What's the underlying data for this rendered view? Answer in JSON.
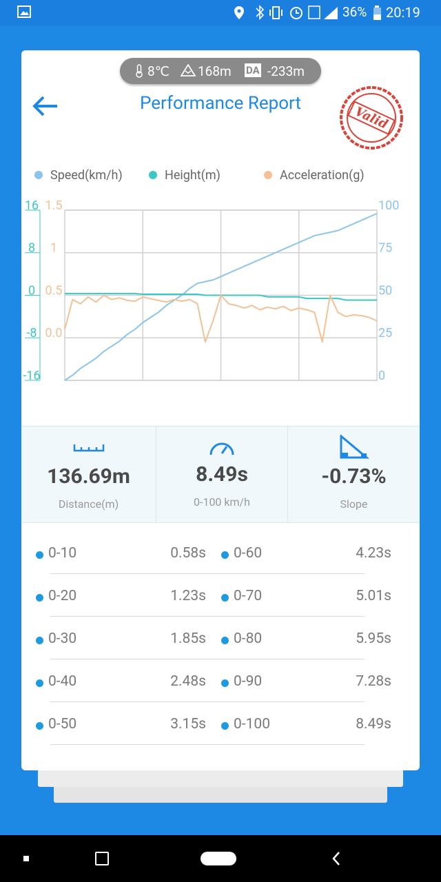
{
  "status_bar": {
    "battery": "36%",
    "time": "20:19"
  },
  "header": {
    "temperature": "8℃",
    "altitude": "168m",
    "da_label": "DA",
    "da_value": "-233m",
    "title": "Performance Report",
    "stamp": "Valid"
  },
  "chart_data": {
    "type": "line",
    "series": [
      {
        "name": "Speed(km/h)",
        "color": "#8cc4ec",
        "axis": "y2",
        "values": [
          0,
          3,
          7,
          10,
          13,
          17,
          20,
          23,
          27,
          30,
          34,
          37,
          40,
          44,
          47,
          50,
          54,
          57,
          58,
          59,
          61,
          63,
          65,
          67,
          69,
          71,
          73,
          75,
          77,
          79,
          81,
          83,
          85,
          86,
          87,
          88,
          90,
          92,
          94,
          96,
          98
        ]
      },
      {
        "name": "Height(m)",
        "color": "#3cc6c6",
        "values": [
          0.3,
          0.3,
          0.3,
          0.3,
          0.3,
          0.3,
          0.3,
          0.3,
          0.3,
          0.3,
          0.2,
          0.2,
          0.2,
          0.2,
          0.2,
          0.2,
          0.2,
          0.2,
          0,
          0,
          0,
          0,
          0,
          0,
          0,
          0,
          -0.3,
          -0.3,
          -0.3,
          -0.3,
          -0.3,
          -0.6,
          -0.6,
          -0.6,
          -0.6,
          -0.6,
          -0.9,
          -0.9,
          -0.9,
          -0.9,
          -0.9
        ]
      },
      {
        "name": "Acceleration(g)",
        "color": "#f4c194",
        "axis": "y3",
        "values": [
          0.1,
          0.45,
          0.4,
          0.48,
          0.42,
          0.5,
          0.45,
          0.47,
          0.44,
          0.43,
          0.48,
          0.46,
          0.44,
          0.42,
          0.45,
          0.43,
          0.45,
          0.4,
          -0.05,
          0.2,
          0.5,
          0.4,
          0.38,
          0.35,
          0.38,
          0.33,
          0.36,
          0.34,
          0.37,
          0.32,
          0.35,
          0.33,
          0.3,
          -0.05,
          0.5,
          0.3,
          0.25,
          0.27,
          0.26,
          0.24,
          0.2
        ]
      }
    ],
    "ylim": [
      -16,
      16
    ],
    "yticks": [
      -16,
      -8,
      0,
      8,
      16
    ],
    "y2lim": [
      0,
      100
    ],
    "y2ticks": [
      0,
      25,
      50,
      75,
      100
    ],
    "y3lim": [
      -0.5,
      1.5
    ],
    "y3ticks": [
      {
        "value": 0,
        "label": "0.0"
      },
      0.5,
      1,
      1.5
    ],
    "grid": true,
    "legend": "top"
  },
  "stats": [
    {
      "value": "136.69m",
      "label": "Distance(m)"
    },
    {
      "value": "8.49s",
      "label": "0-100 km/h"
    },
    {
      "value": "-0.73%",
      "label": "Slope"
    }
  ],
  "splits": [
    {
      "range": "0-10",
      "time": "0.58s"
    },
    {
      "range": "0-60",
      "time": "4.23s"
    },
    {
      "range": "0-20",
      "time": "1.23s"
    },
    {
      "range": "0-70",
      "time": "5.01s"
    },
    {
      "range": "0-30",
      "time": "1.85s"
    },
    {
      "range": "0-80",
      "time": "5.95s"
    },
    {
      "range": "0-40",
      "time": "2.48s"
    },
    {
      "range": "0-90",
      "time": "7.28s"
    },
    {
      "range": "0-50",
      "time": "3.15s"
    },
    {
      "range": "0-100",
      "time": "8.49s"
    }
  ]
}
